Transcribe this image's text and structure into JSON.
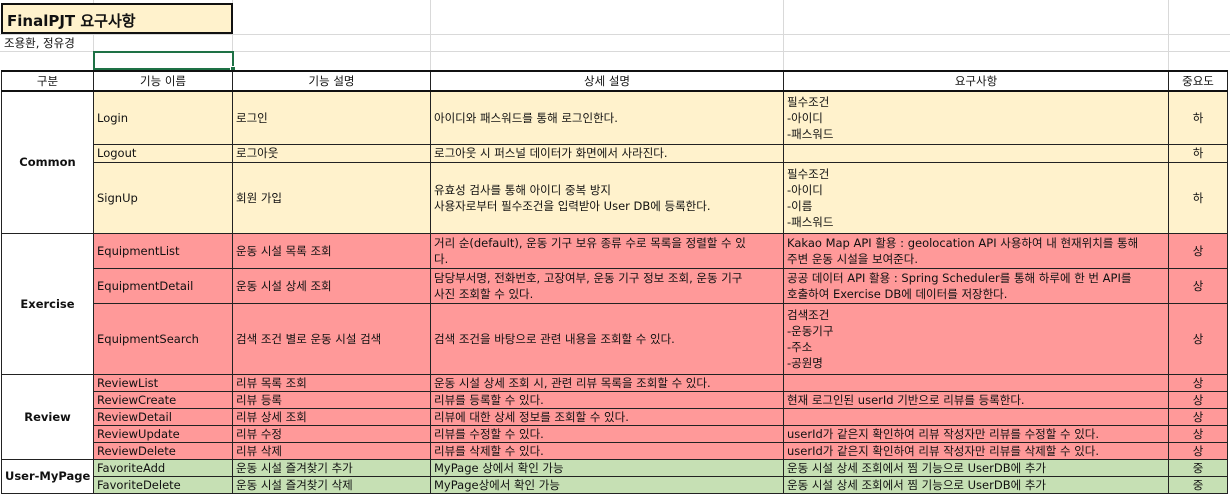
{
  "title": "FinalPJT 요구사항",
  "authors": "조용환, 정유경",
  "headers": [
    "구분",
    "기능 이름",
    "기능 설명",
    "상세 설명",
    "요구사항",
    "중요도"
  ],
  "colors": {
    "common": "#fff2cc",
    "exercise": "#ff9999",
    "review": "#ff9999",
    "mypage": "#c6e0b4",
    "selection": "#1e7145"
  },
  "groups": {
    "common": {
      "label": "Common",
      "rows": [
        {
          "name": "Login",
          "func": "로그인",
          "detail": [
            "아이디와 패스워드를 통해 로그인한다."
          ],
          "req": [
            "필수조건",
            "-아이디",
            "-패스워드"
          ],
          "prio": "하"
        },
        {
          "name": "Logout",
          "func": "로그아웃",
          "detail": [
            "로그아웃 시 퍼스널 데이터가 화면에서 사라진다."
          ],
          "req": [],
          "prio": "하"
        },
        {
          "name": "SignUp",
          "func": "회원 가입",
          "detail": [
            "유효성 검사를 통해 아이디 중복 방지",
            "사용자로부터 필수조건을 입력받아 User DB에 등록한다."
          ],
          "req": [
            "필수조건",
            "-아이디",
            "-이름",
            "-패스워드"
          ],
          "prio": "하"
        }
      ]
    },
    "exercise": {
      "label": "Exercise",
      "rows": [
        {
          "name": "EquipmentList",
          "func": "운동 시설 목록 조회",
          "detail": [
            "거리 순(default), 운동 기구 보유 종류 수로 목록을 정렬할 수 있",
            "다."
          ],
          "req": [
            "Kakao Map API 활용 : geolocation API 사용하여 내 현재위치를 통해",
            "주변 운동 시설을 보여준다."
          ],
          "prio": "상"
        },
        {
          "name": "EquipmentDetail",
          "func": "운동 시설 상세 조회",
          "detail": [
            "담당부서명, 전화번호, 고장여부, 운동 기구 정보 조회, 운동 기구",
            "사진 조회할 수 있다."
          ],
          "req": [
            "공공 데이터 API 활용 : Spring Scheduler를 통해 하루에 한 번 API를",
            "호출하여 Exercise DB에 데이터를 저장한다."
          ],
          "prio": "상"
        },
        {
          "name": "EquipmentSearch",
          "func": "검색 조건 별로 운동 시설 검색",
          "detail": [
            "검색 조건을 바탕으로 관련 내용을 조회할 수 있다."
          ],
          "req": [
            "검색조건",
            "-운동기구",
            "-주소",
            "-공원명"
          ],
          "prio": "상"
        }
      ]
    },
    "review": {
      "label": "Review",
      "rows": [
        {
          "name": "ReviewList",
          "func": "리뷰 목록 조회",
          "detail": [
            "운동 시설 상세 조회 시, 관련 리뷰 목록을 조회할 수 있다."
          ],
          "req": [],
          "prio": "상"
        },
        {
          "name": "ReviewCreate",
          "func": "리뷰 등록",
          "detail": [
            "리뷰를 등록할 수 있다."
          ],
          "req": [
            "현재 로그인된 userId 기반으로 리뷰를 등록한다."
          ],
          "prio": "상"
        },
        {
          "name": "ReviewDetail",
          "func": "리뷰 상세 조회",
          "detail": [
            "리뷰에 대한 상세 정보를 조회할 수 있다."
          ],
          "req": [],
          "prio": "상"
        },
        {
          "name": "ReviewUpdate",
          "func": "리뷰 수정",
          "detail": [
            "리뷰를 수정할 수 있다."
          ],
          "req": [
            "userId가 같은지 확인하여 리뷰 작성자만 리뷰를 수정할 수 있다."
          ],
          "prio": "상"
        },
        {
          "name": "ReviewDelete",
          "func": "리뷰 삭제",
          "detail": [
            "리뷰를 삭제할 수 있다."
          ],
          "req": [
            "userId가 같은지 확인하여 리뷰 작성자만 리뷰를 삭제할 수 있다."
          ],
          "prio": "상"
        }
      ]
    },
    "mypage": {
      "label": "User-MyPage",
      "rows": [
        {
          "name": "FavoriteAdd",
          "func": "운동 시설 즐겨찾기 추가",
          "detail": [
            "MyPage 상에서 확인 가능"
          ],
          "req": [
            "운동 시설 상세 조회에서 찜 기능으로 UserDB에 추가"
          ],
          "prio": "중"
        },
        {
          "name": "FavoriteDelete",
          "func": "운동 시설 즐겨찾기 삭제",
          "detail": [
            "MyPage상에서 확인 가능"
          ],
          "req": [
            "운동 시설 상세 조회에서 찜 기능으로 UserDB에 추가"
          ],
          "prio": "중"
        }
      ]
    }
  }
}
